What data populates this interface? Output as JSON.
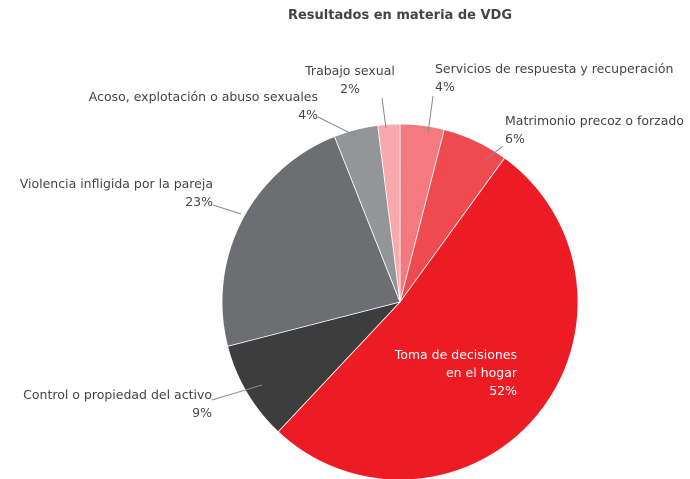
{
  "chart_data": {
    "type": "pie",
    "title": "Resultados en materia de VDG",
    "categories": [
      "Servicios de respuesta y recuperación",
      "Matrimonio precoz o forzado",
      "Toma de decisiones en el hogar",
      "Control o propiedad del activo",
      "Violencia infligida por la pareja",
      "Acoso, explotación o abuso sexuales",
      "Trabajo sexual"
    ],
    "values": [
      4,
      6,
      52,
      9,
      23,
      4,
      2
    ],
    "value_labels": [
      "4%",
      "6%",
      "52%",
      "9%",
      "23%",
      "4%",
      "2%"
    ],
    "colors": [
      "#f47a7f",
      "#ef4a50",
      "#ed1c24",
      "#3d3d3d",
      "#6d6e71",
      "#939598",
      "#f9a8ab"
    ]
  }
}
